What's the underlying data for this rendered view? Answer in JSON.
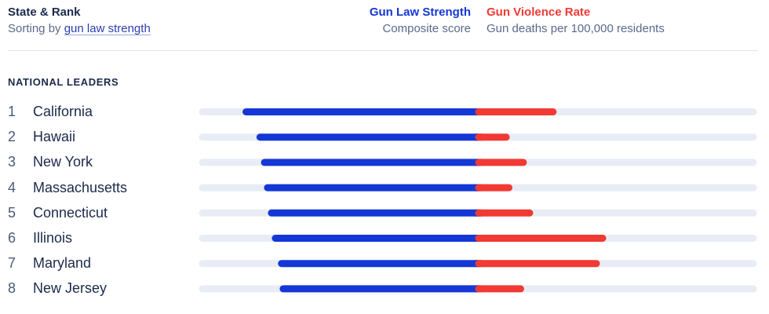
{
  "header": {
    "title": "State & Rank",
    "sort_prefix": "Sorting by ",
    "sort_link": "gun law strength",
    "blue_title": "Gun Law Strength",
    "blue_sub": "Composite score",
    "red_title": "Gun Violence Rate",
    "red_sub": "Gun deaths per 100,000 residents"
  },
  "section_title": "NATIONAL LEADERS",
  "colors": {
    "law": "#1537d6",
    "violence": "#f03a33",
    "track": "#e8ecf5"
  },
  "chart_data": {
    "type": "bar",
    "categories": [
      "California",
      "Hawaii",
      "New York",
      "Massachusetts",
      "Connecticut",
      "Illinois",
      "Maryland",
      "New Jersey"
    ],
    "ranks": [
      "1",
      "2",
      "3",
      "4",
      "5",
      "6",
      "7",
      "8"
    ],
    "series": [
      {
        "name": "Gun Law Strength",
        "values": [
          84.4,
          79.4,
          77.8,
          76.7,
          75.3,
          73.9,
          71.7,
          71.1
        ]
      },
      {
        "name": "Gun Violence Rate",
        "values": [
          8.6,
          3.4,
          5.3,
          3.7,
          6.0,
          14.1,
          13.4,
          5.0
        ]
      }
    ],
    "law_range": [
      0,
      100
    ],
    "violence_range": [
      0,
      30.8
    ]
  }
}
